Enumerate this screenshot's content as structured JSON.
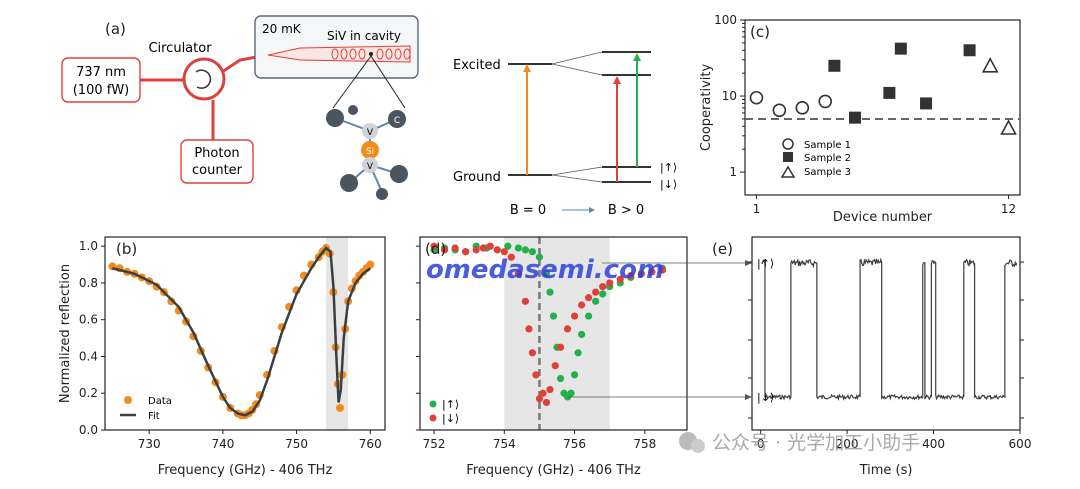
{
  "panels": {
    "a": {
      "label": "(a)",
      "laser_line1": "737 nm",
      "laser_line2": "(100 fW)",
      "circulator": "Circulator",
      "temp": "20 mK",
      "cavity": "SiV in cavity",
      "detector_line1": "Photon",
      "detector_line2": "counter",
      "atom_v": "V",
      "atom_c": "C",
      "atom_si": "Si",
      "excited": "Excited",
      "ground": "Ground",
      "spin_up": "|↑⟩",
      "spin_down": "|↓⟩",
      "b_zero": "B = 0",
      "b_pos": "B > 0"
    },
    "b": {
      "label": "(b)",
      "legend_data": "Data",
      "legend_fit": "Fit"
    },
    "c": {
      "label": "(c)",
      "legend": [
        "Sample 1",
        "Sample 2",
        "Sample 3"
      ]
    },
    "d": {
      "label": "(d)",
      "legend": [
        "|↑⟩",
        "|↓⟩"
      ]
    },
    "e": {
      "label": "(e)",
      "up_label": "|↑⟩",
      "down_label": "|↓⟩"
    }
  },
  "watermark": "omedasemi.com",
  "footer_brand": "公众号 · 光学加工小助手",
  "colors": {
    "orange": "#f28b1c",
    "red": "#e0403a",
    "green": "#22b04a",
    "gray": "#444444",
    "shade": "#e6e6e6"
  },
  "chart_data": [
    {
      "type": "scatter",
      "id": "b",
      "xlabel": "Frequency (GHz) - 406 THz",
      "ylabel": "Normalized reflection",
      "xlim": [
        724,
        762
      ],
      "ylim": [
        0.0,
        1.05
      ],
      "xticks": [
        "730",
        "740",
        "750",
        "760"
      ],
      "yticks": [
        "0.0",
        "0.2",
        "0.4",
        "0.6",
        "0.8",
        "1.0"
      ],
      "shaded": [
        754,
        757
      ],
      "series": [
        {
          "name": "Data",
          "color": "#f28b1c",
          "x": [
            725,
            726,
            727,
            728,
            729,
            730,
            731,
            732,
            733,
            734,
            735,
            736,
            737,
            738,
            739,
            740,
            741,
            742,
            742.5,
            743,
            743.5,
            744,
            744.5,
            745,
            746,
            747,
            748,
            749,
            750,
            751,
            752,
            753,
            753.5,
            754,
            754.5,
            755,
            755.3,
            755.6,
            755.9,
            756.2,
            756.6,
            757,
            757.5,
            758,
            758.5,
            759,
            759.5,
            760
          ],
          "y": [
            0.89,
            0.88,
            0.86,
            0.85,
            0.83,
            0.81,
            0.78,
            0.75,
            0.7,
            0.65,
            0.59,
            0.51,
            0.43,
            0.34,
            0.26,
            0.18,
            0.12,
            0.09,
            0.08,
            0.08,
            0.09,
            0.11,
            0.14,
            0.19,
            0.3,
            0.43,
            0.56,
            0.67,
            0.76,
            0.84,
            0.9,
            0.94,
            0.97,
            0.99,
            0.96,
            0.75,
            0.45,
            0.25,
            0.12,
            0.3,
            0.55,
            0.7,
            0.77,
            0.81,
            0.84,
            0.86,
            0.88,
            0.9
          ]
        },
        {
          "name": "Fit",
          "color": "#3a3f44",
          "x": [
            725,
            728,
            731,
            734,
            736,
            738,
            740,
            741,
            742,
            743,
            744,
            745,
            746,
            748,
            750,
            752,
            753,
            754,
            754.6,
            755,
            755.4,
            755.7,
            756,
            756.4,
            757,
            758,
            759,
            760
          ],
          "y": [
            0.88,
            0.85,
            0.79,
            0.67,
            0.53,
            0.35,
            0.18,
            0.12,
            0.09,
            0.08,
            0.1,
            0.16,
            0.27,
            0.53,
            0.74,
            0.88,
            0.94,
            0.99,
            0.97,
            0.78,
            0.4,
            0.15,
            0.22,
            0.5,
            0.7,
            0.8,
            0.85,
            0.88
          ]
        }
      ]
    },
    {
      "type": "scatter",
      "id": "c",
      "xlabel": "Device number",
      "ylabel": "Cooperativity",
      "scale": "log",
      "xlim": [
        0.5,
        12.5
      ],
      "ylim": [
        0.5,
        100
      ],
      "xticks": [
        "1",
        "12"
      ],
      "yticks": [
        "1",
        "10",
        "100"
      ],
      "threshold": 5,
      "series": [
        {
          "name": "Sample 1",
          "marker": "circle-open",
          "x": [
            1,
            2,
            3,
            4
          ],
          "y": [
            9.5,
            6.5,
            7.0,
            8.5
          ]
        },
        {
          "name": "Sample 2",
          "marker": "square",
          "x": [
            4.4,
            5.3,
            6.8,
            7.3,
            8.4,
            10.3
          ],
          "y": [
            25,
            5.2,
            11,
            42,
            8,
            40
          ]
        },
        {
          "name": "Sample 3",
          "marker": "triangle-open",
          "x": [
            11.2,
            12
          ],
          "y": [
            25,
            3.8
          ]
        }
      ]
    },
    {
      "type": "scatter",
      "id": "d",
      "xlabel": "Frequency (GHz) - 406 THz",
      "xlim": [
        751.6,
        759.2
      ],
      "ylim": [
        0.0,
        1.05
      ],
      "xticks": [
        "752",
        "754",
        "756",
        "758"
      ],
      "shaded": [
        754,
        757
      ],
      "vline": 755,
      "series": [
        {
          "name": "|↑⟩",
          "color": "#22b04a",
          "x": [
            752,
            752.3,
            752.6,
            752.9,
            753.2,
            753.5,
            753.8,
            754.1,
            754.4,
            754.6,
            754.8,
            755.0,
            755.2,
            755.3,
            755.4,
            755.5,
            755.6,
            755.7,
            755.8,
            755.9,
            756.0,
            756.1,
            756.2,
            756.4,
            756.6,
            756.8,
            757.0,
            757.3,
            757.6,
            757.9,
            758.2,
            758.5
          ],
          "y": [
            0.98,
            0.99,
            0.98,
            0.97,
            1.0,
            0.99,
            0.98,
            1.0,
            0.99,
            0.98,
            0.97,
            0.94,
            0.85,
            0.75,
            0.62,
            0.45,
            0.28,
            0.2,
            0.18,
            0.2,
            0.3,
            0.42,
            0.52,
            0.62,
            0.7,
            0.74,
            0.78,
            0.8,
            0.83,
            0.85,
            0.86,
            0.88
          ]
        },
        {
          "name": "|↓⟩",
          "color": "#e0403a",
          "x": [
            752,
            752.3,
            752.6,
            752.9,
            753.2,
            753.4,
            753.6,
            753.8,
            754.0,
            754.2,
            754.4,
            754.6,
            754.7,
            754.8,
            754.9,
            755.0,
            755.1,
            755.2,
            755.3,
            755.45,
            755.6,
            755.8,
            756.0,
            756.2,
            756.4,
            756.6,
            756.8,
            757.0,
            757.3,
            757.6,
            757.9,
            758.2,
            758.5
          ],
          "y": [
            1.0,
            0.98,
            0.99,
            0.97,
            0.98,
            0.99,
            1.0,
            0.98,
            0.97,
            0.94,
            0.85,
            0.7,
            0.55,
            0.42,
            0.3,
            0.17,
            0.2,
            0.15,
            0.22,
            0.35,
            0.45,
            0.55,
            0.62,
            0.68,
            0.72,
            0.75,
            0.78,
            0.8,
            0.82,
            0.84,
            0.85,
            0.86,
            0.87
          ]
        }
      ]
    },
    {
      "type": "line",
      "id": "e",
      "xlabel": "Time (s)",
      "xlim": [
        -20,
        600
      ],
      "xticks": [
        "0",
        "200",
        "400",
        "600"
      ],
      "states": [
        "up",
        "down",
        "up",
        "down",
        "up",
        "down",
        "up",
        "down",
        "up",
        "down",
        "up",
        "down",
        "up"
      ],
      "switch_times": [
        10,
        70,
        130,
        230,
        280,
        375,
        380,
        395,
        405,
        470,
        495,
        565
      ]
    }
  ]
}
